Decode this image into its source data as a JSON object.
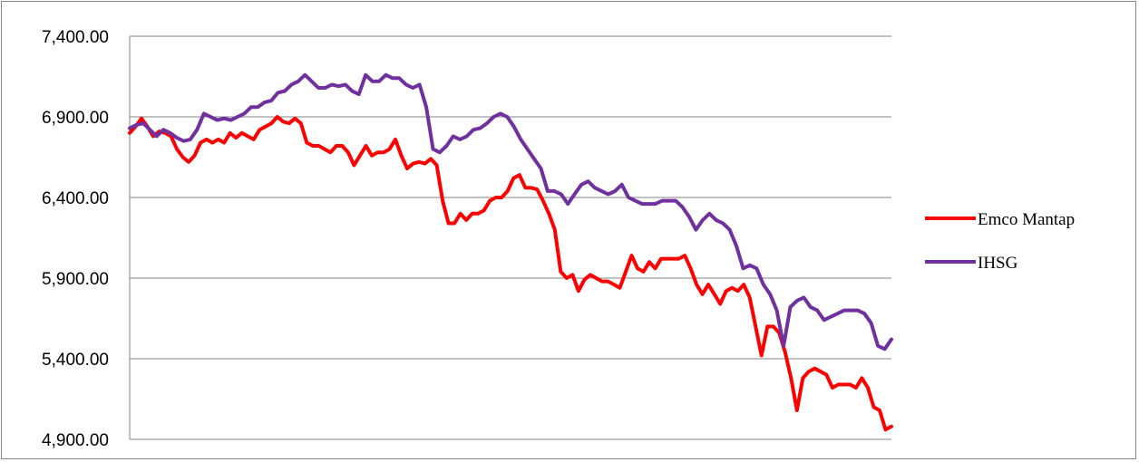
{
  "chart_data": {
    "type": "line",
    "title": "",
    "xlabel": "",
    "ylabel": "",
    "ylim": [
      4900,
      7400
    ],
    "yticks": [
      7400,
      6900,
      6400,
      5900,
      5400,
      4900
    ],
    "ytick_labels": [
      "7,400.00",
      "6,900.00",
      "6,400.00",
      "5,900.00",
      "5,400.00",
      "4,900.00"
    ],
    "grid": "horizontal",
    "legend_position": "right",
    "series": [
      {
        "name": "Emco Mantap",
        "color": "#ff0000",
        "values": [
          6800,
          6840,
          6890,
          6840,
          6780,
          6810,
          6800,
          6780,
          6700,
          6650,
          6620,
          6660,
          6740,
          6760,
          6740,
          6760,
          6740,
          6800,
          6770,
          6800,
          6780,
          6760,
          6820,
          6840,
          6860,
          6900,
          6870,
          6860,
          6890,
          6860,
          6740,
          6720,
          6720,
          6700,
          6680,
          6720,
          6720,
          6680,
          6600,
          6660,
          6720,
          6660,
          6680,
          6680,
          6700,
          6760,
          6660,
          6580,
          6610,
          6620,
          6610,
          6640,
          6600,
          6380,
          6240,
          6240,
          6300,
          6260,
          6300,
          6300,
          6320,
          6380,
          6400,
          6400,
          6440,
          6520,
          6540,
          6460,
          6460,
          6450,
          6380,
          6300,
          6200,
          5940,
          5900,
          5920,
          5820,
          5890,
          5920,
          5900,
          5880,
          5880,
          5860,
          5840,
          5940,
          6040,
          5960,
          5940,
          6000,
          5960,
          6020,
          6020,
          6020,
          6020,
          6040,
          5960,
          5860,
          5800,
          5860,
          5800,
          5740,
          5820,
          5840,
          5820,
          5860,
          5780,
          5600,
          5420,
          5600,
          5600,
          5560,
          5440,
          5280,
          5080,
          5280,
          5320,
          5340,
          5320,
          5300,
          5220,
          5240,
          5240,
          5240,
          5220,
          5280,
          5220,
          5100,
          5080,
          4960,
          4980
        ]
      },
      {
        "name": "IHSG",
        "color": "#7030a0",
        "values": [
          6830,
          6850,
          6860,
          6820,
          6780,
          6820,
          6800,
          6770,
          6750,
          6760,
          6820,
          6920,
          6900,
          6880,
          6890,
          6880,
          6900,
          6920,
          6960,
          6960,
          6990,
          7000,
          7050,
          7060,
          7100,
          7120,
          7160,
          7120,
          7080,
          7080,
          7100,
          7090,
          7100,
          7060,
          7040,
          7160,
          7120,
          7120,
          7160,
          7140,
          7140,
          7100,
          7080,
          7100,
          6960,
          6700,
          6680,
          6720,
          6780,
          6760,
          6780,
          6820,
          6830,
          6860,
          6900,
          6920,
          6900,
          6840,
          6760,
          6700,
          6640,
          6580,
          6440,
          6440,
          6420,
          6360,
          6420,
          6480,
          6500,
          6460,
          6440,
          6420,
          6440,
          6480,
          6400,
          6380,
          6360,
          6360,
          6360,
          6380,
          6380,
          6380,
          6340,
          6280,
          6200,
          6260,
          6300,
          6260,
          6240,
          6200,
          6100,
          5960,
          5980,
          5960,
          5860,
          5800,
          5700,
          5480,
          5720,
          5760,
          5780,
          5720,
          5700,
          5640,
          5660,
          5680,
          5700,
          5700,
          5700,
          5680,
          5620,
          5480,
          5460,
          5520
        ]
      }
    ]
  }
}
